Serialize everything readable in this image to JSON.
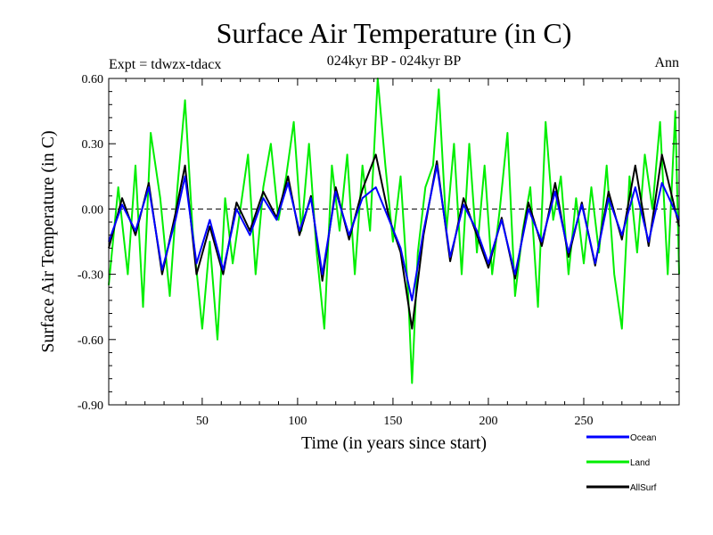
{
  "chart_data": {
    "type": "line",
    "title": "Surface Air Temperature (in C)",
    "subtitle": "024kyr BP - 024kyr BP",
    "expt_label": "Expt = tdwzx-tdacx",
    "season_label": "Ann",
    "xlabel": "Time (in years since start)",
    "ylabel": "Surface Air Temperature (in C)",
    "xlim": [
      1,
      300
    ],
    "ylim": [
      -0.9,
      0.6
    ],
    "x_ticks": [
      50,
      100,
      150,
      200,
      250
    ],
    "x_tick_labels": [
      "50",
      "100",
      "150",
      "200",
      "250"
    ],
    "y_ticks": [
      -0.9,
      -0.6,
      -0.3,
      0.0,
      0.3,
      0.6
    ],
    "y_tick_labels": [
      "-0.90",
      "-0.60",
      "-0.30",
      "0.00",
      "0.30",
      "0.60"
    ],
    "zero_line": true,
    "legend_position": "bottom-right",
    "series": [
      {
        "name": "Ocean",
        "color": "#0000ff",
        "x": [
          1,
          8,
          15,
          22,
          29,
          36,
          41,
          47,
          54,
          61,
          68,
          75,
          82,
          89,
          95,
          101,
          107,
          113,
          120,
          127,
          134,
          141,
          148,
          154,
          160,
          166,
          173,
          180,
          187,
          194,
          200,
          207,
          214,
          221,
          228,
          235,
          242,
          249,
          256,
          263,
          270,
          277,
          284,
          291,
          300
        ],
        "values": [
          -0.15,
          0.02,
          -0.1,
          0.1,
          -0.28,
          -0.05,
          0.15,
          -0.25,
          -0.05,
          -0.28,
          0.0,
          -0.12,
          0.05,
          -0.05,
          0.12,
          -0.1,
          0.05,
          -0.3,
          0.08,
          -0.12,
          0.05,
          0.1,
          -0.05,
          -0.18,
          -0.42,
          -0.1,
          0.2,
          -0.22,
          0.02,
          -0.1,
          -0.25,
          -0.05,
          -0.3,
          0.0,
          -0.15,
          0.08,
          -0.2,
          0.02,
          -0.25,
          0.05,
          -0.12,
          0.1,
          -0.15,
          0.12,
          -0.05
        ]
      },
      {
        "name": "Land",
        "color": "#00ee00",
        "x": [
          1,
          6,
          11,
          15,
          19,
          23,
          28,
          33,
          37,
          41,
          45,
          50,
          54,
          58,
          62,
          66,
          70,
          74,
          78,
          82,
          86,
          90,
          94,
          98,
          102,
          106,
          110,
          114,
          118,
          122,
          126,
          130,
          134,
          138,
          142,
          146,
          150,
          154,
          158,
          160,
          163,
          167,
          171,
          174,
          178,
          182,
          186,
          190,
          194,
          198,
          202,
          206,
          210,
          214,
          218,
          222,
          226,
          230,
          234,
          238,
          242,
          246,
          250,
          254,
          258,
          262,
          266,
          270,
          274,
          278,
          282,
          286,
          290,
          294,
          298,
          300
        ],
        "values": [
          -0.35,
          0.1,
          -0.3,
          0.2,
          -0.45,
          0.35,
          0.05,
          -0.4,
          0.1,
          0.5,
          -0.1,
          -0.55,
          -0.15,
          -0.6,
          0.05,
          -0.25,
          0.0,
          0.25,
          -0.3,
          0.1,
          0.3,
          -0.05,
          0.15,
          0.4,
          -0.1,
          0.3,
          -0.2,
          -0.55,
          0.2,
          -0.1,
          0.25,
          -0.3,
          0.2,
          -0.1,
          0.6,
          0.2,
          -0.15,
          0.15,
          -0.4,
          -0.8,
          -0.2,
          0.1,
          0.2,
          0.55,
          -0.1,
          0.3,
          -0.3,
          0.3,
          -0.2,
          0.2,
          -0.3,
          0.0,
          0.35,
          -0.4,
          -0.1,
          0.1,
          -0.45,
          0.4,
          -0.05,
          0.15,
          -0.3,
          0.05,
          -0.25,
          0.1,
          -0.2,
          0.2,
          -0.3,
          -0.55,
          0.15,
          -0.2,
          0.25,
          0.0,
          0.4,
          -0.3,
          0.45,
          -0.3
        ]
      },
      {
        "name": "AllSurf",
        "color": "#000000",
        "x": [
          1,
          8,
          15,
          22,
          29,
          36,
          41,
          47,
          54,
          61,
          68,
          75,
          82,
          89,
          95,
          101,
          107,
          113,
          120,
          127,
          134,
          141,
          148,
          154,
          160,
          166,
          173,
          180,
          187,
          194,
          200,
          207,
          214,
          221,
          228,
          235,
          242,
          249,
          256,
          263,
          270,
          277,
          284,
          291,
          300
        ],
        "values": [
          -0.18,
          0.05,
          -0.12,
          0.12,
          -0.3,
          -0.02,
          0.2,
          -0.3,
          -0.08,
          -0.3,
          0.03,
          -0.1,
          0.08,
          -0.04,
          0.15,
          -0.12,
          0.06,
          -0.33,
          0.1,
          -0.14,
          0.09,
          0.25,
          -0.04,
          -0.2,
          -0.55,
          -0.12,
          0.22,
          -0.24,
          0.05,
          -0.12,
          -0.27,
          -0.04,
          -0.32,
          0.03,
          -0.17,
          0.12,
          -0.22,
          0.03,
          -0.26,
          0.08,
          -0.14,
          0.2,
          -0.17,
          0.25,
          -0.08
        ]
      }
    ]
  }
}
